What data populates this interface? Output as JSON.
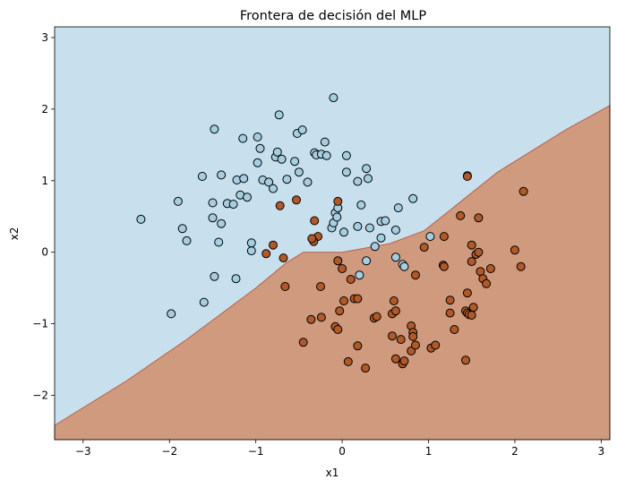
{
  "chart_data": {
    "type": "scatter",
    "title": "Frontera de decisión del MLP",
    "xlabel": "x1",
    "ylabel": "x2",
    "xlim": [
      -3.33,
      3.1
    ],
    "ylim": [
      -2.62,
      3.15
    ],
    "xticks": [
      -3,
      -2,
      -1,
      0,
      1,
      2,
      3
    ],
    "yticks": [
      -2,
      -1,
      0,
      1,
      2,
      3
    ],
    "xtick_labels": [
      "−3",
      "−2",
      "−1",
      "0",
      "1",
      "2",
      "3"
    ],
    "ytick_labels": [
      "−2",
      "−1",
      "0",
      "1",
      "2",
      "3"
    ],
    "grid": false,
    "legend": "none",
    "colors": {
      "class0_region": "#c8e0ee",
      "class1_region": "#d09a7e",
      "boundary": "#b9604a",
      "class0_point": "#a6cee3",
      "class1_point": "#b15928",
      "point_edge": "#000000"
    },
    "decision_boundary": [
      [
        -3.33,
        -2.42
      ],
      [
        -2.5,
        -1.8
      ],
      [
        -1.8,
        -1.22
      ],
      [
        -1.0,
        -0.5
      ],
      [
        -0.65,
        -0.15
      ],
      [
        -0.45,
        0.0
      ],
      [
        0.0,
        0.0
      ],
      [
        0.55,
        0.12
      ],
      [
        0.95,
        0.3
      ],
      [
        1.8,
        1.12
      ],
      [
        2.6,
        1.72
      ],
      [
        3.1,
        2.05
      ]
    ],
    "series": [
      {
        "class": 0,
        "points": [
          [
            -2.33,
            0.46
          ],
          [
            -1.98,
            -0.86
          ],
          [
            -1.9,
            0.71
          ],
          [
            -1.85,
            0.33
          ],
          [
            -1.8,
            0.16
          ],
          [
            -1.62,
            1.06
          ],
          [
            -1.6,
            -0.7
          ],
          [
            -1.5,
            0.69
          ],
          [
            -1.5,
            0.48
          ],
          [
            -1.48,
            1.72
          ],
          [
            -1.48,
            -0.34
          ],
          [
            -1.43,
            0.14
          ],
          [
            -1.4,
            0.4
          ],
          [
            -1.4,
            1.08
          ],
          [
            -1.33,
            0.68
          ],
          [
            -1.26,
            0.67
          ],
          [
            -1.22,
            1.01
          ],
          [
            -1.18,
            0.8
          ],
          [
            -1.15,
            1.59
          ],
          [
            -1.14,
            1.03
          ],
          [
            -1.1,
            0.77
          ],
          [
            -1.23,
            -0.37
          ],
          [
            -1.05,
            0.02
          ],
          [
            -1.05,
            0.13
          ],
          [
            -0.98,
            1.61
          ],
          [
            -0.98,
            1.25
          ],
          [
            -0.95,
            1.45
          ],
          [
            -0.92,
            1.01
          ],
          [
            -0.85,
            0.98
          ],
          [
            -0.8,
            0.89
          ],
          [
            -0.77,
            1.33
          ],
          [
            -0.73,
            1.92
          ],
          [
            -0.75,
            1.4
          ],
          [
            -0.7,
            1.3
          ],
          [
            -0.64,
            1.02
          ],
          [
            -0.55,
            1.27
          ],
          [
            -0.52,
            1.66
          ],
          [
            -0.46,
            1.71
          ],
          [
            -0.5,
            1.12
          ],
          [
            -0.4,
            0.98
          ],
          [
            -0.32,
            1.39
          ],
          [
            -0.3,
            1.36
          ],
          [
            -0.24,
            1.37
          ],
          [
            -0.2,
            1.54
          ],
          [
            -0.18,
            1.35
          ],
          [
            -0.12,
            0.34
          ],
          [
            -0.1,
            2.16
          ],
          [
            -0.1,
            0.41
          ],
          [
            -0.08,
            0.55
          ],
          [
            -0.06,
            0.49
          ],
          [
            -0.05,
            0.62
          ],
          [
            0.02,
            0.28
          ],
          [
            0.05,
            1.35
          ],
          [
            0.05,
            1.12
          ],
          [
            0.18,
            0.99
          ],
          [
            0.18,
            0.36
          ],
          [
            0.22,
            0.66
          ],
          [
            0.28,
            1.17
          ],
          [
            0.3,
            1.03
          ],
          [
            0.32,
            0.34
          ],
          [
            0.38,
            0.08
          ],
          [
            0.45,
            0.43
          ],
          [
            0.5,
            0.44
          ],
          [
            0.45,
            0.2
          ],
          [
            0.62,
            0.31
          ],
          [
            0.65,
            0.62
          ],
          [
            0.7,
            -0.17
          ],
          [
            0.82,
            0.75
          ],
          [
            1.02,
            0.22
          ],
          [
            0.62,
            -0.07
          ],
          [
            0.28,
            -0.12
          ],
          [
            0.2,
            -0.32
          ],
          [
            1.45,
            1.07
          ],
          [
            0.72,
            -0.2
          ]
        ]
      },
      {
        "class": 1,
        "points": [
          [
            -0.88,
            -0.02
          ],
          [
            -0.8,
            0.1
          ],
          [
            -0.68,
            -0.08
          ],
          [
            -0.72,
            0.65
          ],
          [
            -0.66,
            -0.48
          ],
          [
            -0.53,
            0.73
          ],
          [
            -0.32,
            0.44
          ],
          [
            -0.28,
            0.22
          ],
          [
            -0.33,
            0.15
          ],
          [
            -0.35,
            0.19
          ],
          [
            -0.25,
            -0.48
          ],
          [
            -0.45,
            -1.26
          ],
          [
            -0.36,
            -0.94
          ],
          [
            -0.24,
            -0.91
          ],
          [
            -0.05,
            0.71
          ],
          [
            -0.05,
            -0.12
          ],
          [
            0.0,
            -0.23
          ],
          [
            -0.03,
            -0.82
          ],
          [
            0.02,
            -0.68
          ],
          [
            0.1,
            -0.38
          ],
          [
            -0.08,
            -1.04
          ],
          [
            -0.05,
            -1.08
          ],
          [
            0.07,
            -1.53
          ],
          [
            0.14,
            -0.65
          ],
          [
            0.18,
            -0.65
          ],
          [
            0.18,
            -1.31
          ],
          [
            0.27,
            -1.62
          ],
          [
            0.37,
            -0.92
          ],
          [
            0.4,
            -0.9
          ],
          [
            0.6,
            -0.68
          ],
          [
            0.58,
            -0.86
          ],
          [
            0.62,
            -0.82
          ],
          [
            0.58,
            -1.17
          ],
          [
            0.62,
            -1.49
          ],
          [
            0.68,
            -1.22
          ],
          [
            0.7,
            -1.56
          ],
          [
            0.72,
            -1.52
          ],
          [
            0.8,
            -1.38
          ],
          [
            0.8,
            -1.03
          ],
          [
            0.82,
            -1.12
          ],
          [
            0.85,
            -1.3
          ],
          [
            0.82,
            -1.18
          ],
          [
            0.85,
            -0.32
          ],
          [
            0.95,
            0.07
          ],
          [
            1.03,
            -1.34
          ],
          [
            1.08,
            -1.3
          ],
          [
            1.17,
            -0.18
          ],
          [
            1.18,
            -0.2
          ],
          [
            1.18,
            0.22
          ],
          [
            1.25,
            -0.67
          ],
          [
            1.25,
            -0.85
          ],
          [
            1.3,
            -1.08
          ],
          [
            1.37,
            0.51
          ],
          [
            1.43,
            -0.82
          ],
          [
            1.45,
            -0.57
          ],
          [
            1.45,
            -0.85
          ],
          [
            1.47,
            -0.87
          ],
          [
            1.43,
            -1.51
          ],
          [
            1.5,
            -0.88
          ],
          [
            1.5,
            -0.13
          ],
          [
            1.5,
            0.1
          ],
          [
            1.55,
            -0.03
          ],
          [
            1.52,
            -0.77
          ],
          [
            1.58,
            0.48
          ],
          [
            1.6,
            -0.27
          ],
          [
            1.63,
            -0.37
          ],
          [
            1.67,
            -0.44
          ],
          [
            1.72,
            -0.23
          ],
          [
            1.45,
            1.06
          ],
          [
            2.0,
            0.03
          ],
          [
            2.07,
            -0.2
          ],
          [
            2.1,
            0.85
          ],
          [
            1.58,
            0.0
          ]
        ]
      }
    ]
  }
}
